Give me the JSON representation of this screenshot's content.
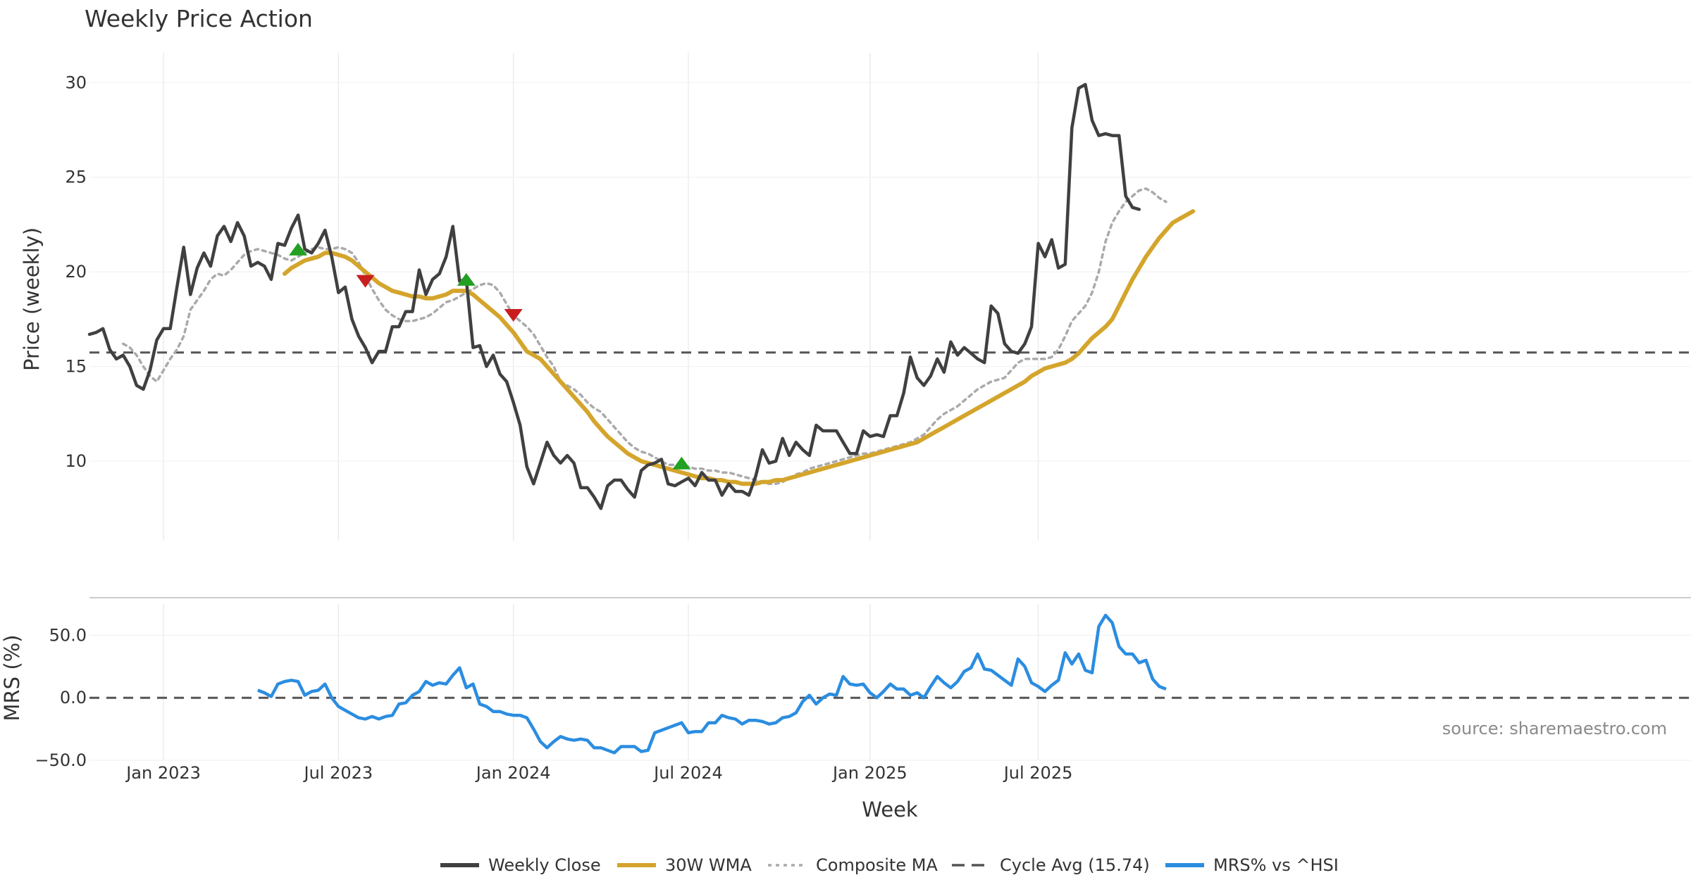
{
  "chart_data": [
    {
      "type": "line",
      "title": "Weekly Price Action",
      "ylabel": "Price (weekly)",
      "ylim": [
        5.8,
        31.2
      ],
      "yticks": [
        10,
        15,
        20,
        25,
        30
      ],
      "x_axis": {
        "start": "2022-10-14",
        "end": "2025-10-31",
        "unit": "week"
      },
      "series": [
        {
          "name": "Weekly Close",
          "color": "#404040",
          "style": "solid",
          "start_week": 0,
          "values": [
            16.7,
            16.8,
            17.0,
            15.9,
            15.4,
            15.6,
            15.0,
            14.0,
            13.8,
            14.8,
            16.4,
            17.0,
            17.0,
            19.2,
            21.3,
            18.8,
            20.2,
            21.0,
            20.3,
            21.9,
            22.4,
            21.6,
            22.6,
            21.9,
            20.3,
            20.5,
            20.3,
            19.6,
            21.5,
            21.4,
            22.3,
            23.0,
            21.2,
            21.0,
            21.5,
            22.2,
            20.8,
            18.9,
            19.2,
            17.5,
            16.6,
            16.0,
            15.2,
            15.8,
            15.8,
            17.1,
            17.1,
            17.9,
            17.9,
            20.1,
            18.8,
            19.6,
            19.9,
            20.8,
            22.4,
            19.5,
            19.6,
            16.0,
            16.1,
            15.0,
            15.6,
            14.6,
            14.2,
            13.1,
            11.9,
            9.7,
            8.8,
            9.9,
            11.0,
            10.3,
            9.9,
            10.3,
            9.9,
            8.6,
            8.6,
            8.1,
            7.5,
            8.7,
            9.0,
            9.0,
            8.5,
            8.1,
            9.5,
            9.8,
            9.9,
            10.1,
            8.8,
            8.7,
            8.9,
            9.1,
            8.7,
            9.4,
            9.0,
            9.0,
            8.2,
            8.8,
            8.4,
            8.4,
            8.2,
            9.2,
            10.6,
            9.9,
            10.0,
            11.2,
            10.3,
            11.0,
            10.6,
            10.3,
            11.9,
            11.6,
            11.6,
            11.6,
            11.0,
            10.4,
            10.4,
            11.6,
            11.3,
            11.4,
            11.3,
            12.4,
            12.4,
            13.6,
            15.5,
            14.4,
            14.0,
            14.5,
            15.4,
            14.7,
            16.3,
            15.6,
            16.0,
            15.7,
            15.4,
            15.2,
            18.2,
            17.8,
            16.2,
            15.8,
            15.7,
            16.2,
            17.1,
            21.5,
            20.8,
            21.7,
            20.2,
            20.4,
            27.6,
            29.7,
            29.9,
            28.0,
            27.2,
            27.3,
            27.2,
            27.2,
            24.0,
            23.4,
            23.3
          ]
        },
        {
          "name": "30W WMA",
          "color": "#d4a52c",
          "style": "solid",
          "start_week": 29,
          "values": [
            19.9,
            20.2,
            20.4,
            20.6,
            20.7,
            20.8,
            21.0,
            21.0,
            20.9,
            20.8,
            20.6,
            20.3,
            20.0,
            19.7,
            19.4,
            19.2,
            19.0,
            18.9,
            18.8,
            18.7,
            18.7,
            18.6,
            18.6,
            18.7,
            18.8,
            19.0,
            19.0,
            19.0,
            18.8,
            18.5,
            18.2,
            17.9,
            17.6,
            17.2,
            16.8,
            16.3,
            15.8,
            15.6,
            15.4,
            15.0,
            14.6,
            14.2,
            13.8,
            13.4,
            13.0,
            12.6,
            12.1,
            11.7,
            11.3,
            11.0,
            10.7,
            10.4,
            10.2,
            10.0,
            9.9,
            9.8,
            9.7,
            9.6,
            9.5,
            9.4,
            9.3,
            9.2,
            9.1,
            9.1,
            9.0,
            9.0,
            8.9,
            8.9,
            8.8,
            8.8,
            8.8,
            8.9,
            8.9,
            9.0,
            9.0,
            9.1,
            9.2,
            9.3,
            9.4,
            9.5,
            9.6,
            9.7,
            9.8,
            9.9,
            10.0,
            10.1,
            10.2,
            10.3,
            10.4,
            10.5,
            10.6,
            10.7,
            10.8,
            10.9,
            11.0,
            11.2,
            11.4,
            11.6,
            11.8,
            12.0,
            12.2,
            12.4,
            12.6,
            12.8,
            13.0,
            13.2,
            13.4,
            13.6,
            13.8,
            14.0,
            14.2,
            14.5,
            14.7,
            14.9,
            15.0,
            15.1,
            15.2,
            15.4,
            15.7,
            16.1,
            16.5,
            16.8,
            17.1,
            17.5,
            18.2,
            18.9,
            19.6,
            20.2,
            20.8,
            21.3,
            21.8,
            22.2,
            22.6,
            22.8,
            23.0,
            23.2
          ]
        },
        {
          "name": "Composite MA",
          "color": "#aaaaaa",
          "style": "dotted",
          "start_week": 5,
          "values": [
            16.2,
            16.0,
            15.6,
            15.0,
            14.5,
            14.2,
            14.8,
            15.4,
            15.9,
            16.6,
            18.0,
            18.5,
            19.0,
            19.6,
            19.9,
            19.8,
            20.1,
            20.5,
            20.9,
            21.1,
            21.2,
            21.1,
            21.0,
            20.9,
            20.7,
            20.6,
            20.8,
            21.0,
            21.2,
            21.3,
            21.2,
            21.2,
            21.3,
            21.2,
            21.0,
            20.5,
            19.8,
            19.1,
            18.5,
            18.0,
            17.7,
            17.5,
            17.4,
            17.4,
            17.5,
            17.6,
            17.8,
            18.1,
            18.4,
            18.5,
            18.7,
            18.9,
            19.1,
            19.3,
            19.4,
            19.3,
            18.9,
            18.3,
            17.7,
            17.4,
            17.1,
            16.7,
            16.1,
            15.5,
            15.0,
            14.2,
            14.0,
            13.8,
            13.5,
            13.1,
            12.8,
            12.6,
            12.2,
            11.8,
            11.4,
            11.0,
            10.7,
            10.5,
            10.4,
            10.2,
            10.0,
            9.8,
            9.8,
            9.8,
            9.7,
            9.6,
            9.6,
            9.5,
            9.5,
            9.4,
            9.4,
            9.3,
            9.2,
            9.1,
            9.0,
            8.9,
            8.8,
            8.8,
            8.9,
            9.1,
            9.3,
            9.4,
            9.6,
            9.7,
            9.8,
            9.9,
            10.0,
            10.1,
            10.2,
            10.3,
            10.4,
            10.4,
            10.5,
            10.6,
            10.7,
            10.8,
            10.9,
            11.0,
            11.2,
            11.4,
            11.8,
            12.2,
            12.5,
            12.7,
            12.9,
            13.2,
            13.5,
            13.8,
            14.0,
            14.2,
            14.3,
            14.4,
            14.8,
            15.2,
            15.4,
            15.4,
            15.4,
            15.4,
            15.5,
            15.9,
            16.6,
            17.4,
            17.8,
            18.2,
            18.9,
            20.0,
            21.6,
            22.6,
            23.2,
            23.7,
            24.0,
            24.3,
            24.4,
            24.2,
            23.9,
            23.7
          ]
        },
        {
          "name": "Cycle Avg (15.74)",
          "color": "#555555",
          "style": "dashed",
          "constant": 15.74
        }
      ],
      "markers": [
        {
          "kind": "buy",
          "week": 31,
          "value": 21.2,
          "color": "#22a022",
          "shape": "triangle-up"
        },
        {
          "kind": "sell",
          "week": 41,
          "value": 19.5,
          "color": "#c81e1e",
          "shape": "triangle-down"
        },
        {
          "kind": "buy",
          "week": 56,
          "value": 19.6,
          "color": "#22a022",
          "shape": "triangle-up"
        },
        {
          "kind": "sell",
          "week": 63,
          "value": 17.7,
          "color": "#c81e1e",
          "shape": "triangle-down"
        },
        {
          "kind": "buy",
          "week": 88,
          "value": 9.9,
          "color": "#22a022",
          "shape": "triangle-up"
        }
      ]
    },
    {
      "type": "line",
      "xlabel": "Week",
      "ylabel": "MRS (%)",
      "ylim": [
        -50,
        75
      ],
      "yticks": [
        -50,
        0,
        50
      ],
      "ytick_labels": [
        "−50.0",
        "0.0",
        "50.0"
      ],
      "xticks": [
        {
          "week": 11,
          "label": "Jan 2023"
        },
        {
          "week": 37,
          "label": "Jul 2023"
        },
        {
          "week": 63,
          "label": "Jan 2024"
        },
        {
          "week": 89,
          "label": "Jul 2024"
        },
        {
          "week": 116,
          "label": "Jan 2025"
        },
        {
          "week": 141,
          "label": "Jul 2025"
        }
      ],
      "source": "source: sharemaestro.com",
      "series": [
        {
          "name": "MRS% vs ^HSI",
          "color": "#2b8de0",
          "style": "solid",
          "start_week": 25,
          "values": [
            6,
            4,
            1,
            11,
            13,
            14,
            13,
            2,
            5,
            6,
            11,
            0,
            -7,
            -10,
            -13,
            -16,
            -17,
            -15,
            -17,
            -15,
            -14,
            -5,
            -4,
            2,
            5,
            13,
            10,
            12,
            11,
            18,
            24,
            8,
            11,
            -5,
            -7,
            -11,
            -11,
            -13,
            -14,
            -14,
            -16,
            -25,
            -35,
            -40,
            -35,
            -31,
            -33,
            -34,
            -33,
            -34,
            -40,
            -40,
            -42,
            -44,
            -39,
            -39,
            -39,
            -43,
            -42,
            -28,
            -26,
            -24,
            -22,
            -20,
            -28,
            -27,
            -27,
            -20,
            -20,
            -14,
            -16,
            -17,
            -21,
            -18,
            -18,
            -19,
            -21,
            -20,
            -16,
            -15,
            -12,
            -3,
            2,
            -5,
            0,
            3,
            2,
            17,
            11,
            10,
            11,
            4,
            0,
            5,
            11,
            7,
            7,
            2,
            4,
            0,
            9,
            17,
            12,
            8,
            13,
            21,
            24,
            35,
            23,
            22,
            18,
            14,
            10,
            31,
            25,
            12,
            9,
            5,
            10,
            14,
            36,
            27,
            35,
            22,
            20,
            57,
            66,
            60,
            41,
            35,
            35,
            28,
            30,
            15,
            9,
            7
          ]
        }
      ]
    }
  ],
  "legend": [
    {
      "label": "Weekly Close",
      "color": "#404040",
      "style": "solid"
    },
    {
      "label": "30W WMA",
      "color": "#d4a52c",
      "style": "solid"
    },
    {
      "label": "Composite MA",
      "color": "#aaaaaa",
      "style": "dotted"
    },
    {
      "label": "Cycle Avg (15.74)",
      "color": "#555555",
      "style": "dashed"
    },
    {
      "label": "MRS% vs ^HSI",
      "color": "#2b8de0",
      "style": "solid"
    }
  ]
}
